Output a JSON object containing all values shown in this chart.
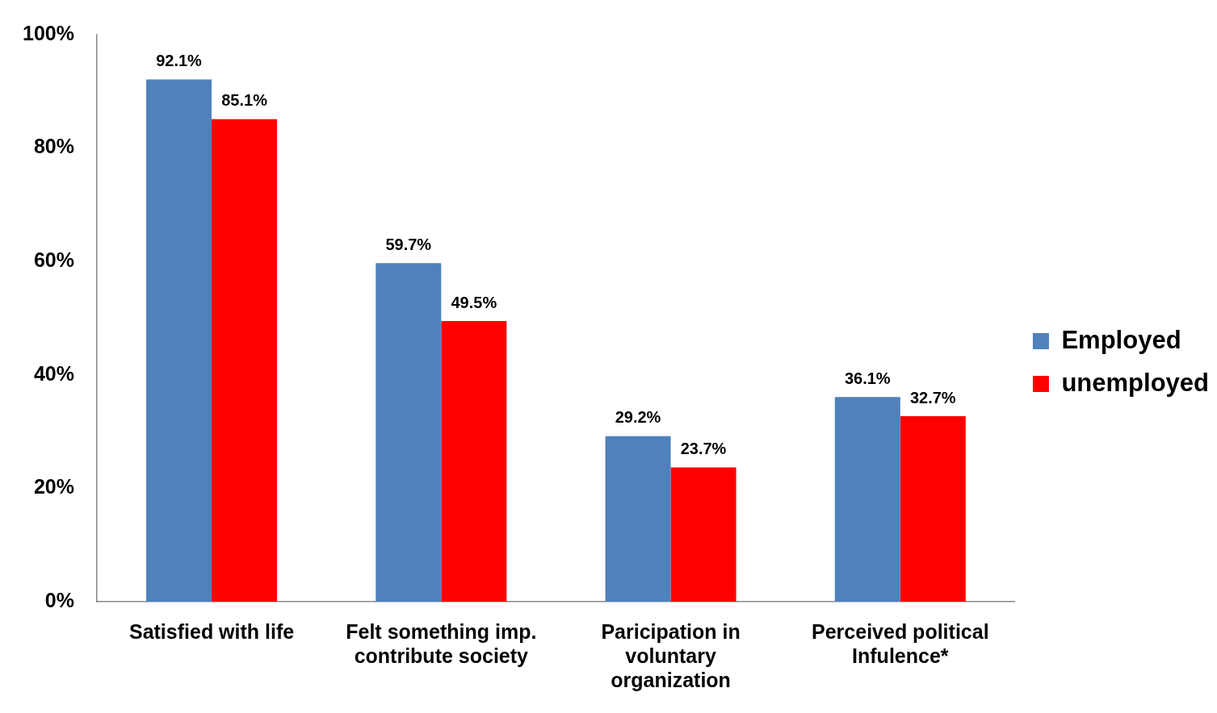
{
  "chart_data": {
    "type": "bar",
    "categories": [
      "Satisfied with life",
      "Felt something imp. contribute society",
      "Paricipation in voluntary organization",
      "Perceived political Infulence*"
    ],
    "series": [
      {
        "name": "Employed",
        "color": "#4f81bd",
        "values": [
          92.1,
          59.7,
          29.2,
          36.1
        ],
        "value_labels": [
          "92.1%",
          "59.7%",
          "29.2%",
          "36.1%"
        ]
      },
      {
        "name": "unemployed",
        "color": "#ff0000",
        "values": [
          85.1,
          49.5,
          23.7,
          32.7
        ],
        "value_labels": [
          "85.1%",
          "49.5%",
          "23.7%",
          "32.7%"
        ]
      }
    ],
    "ylim": [
      0,
      100
    ],
    "yticks": [
      {
        "value": 0,
        "label": "0%"
      },
      {
        "value": 20,
        "label": "20%"
      },
      {
        "value": 40,
        "label": "40%"
      },
      {
        "value": 60,
        "label": "60%"
      },
      {
        "value": 80,
        "label": "80%"
      },
      {
        "value": 100,
        "label": "100%"
      }
    ],
    "grid": false,
    "legend": "right"
  }
}
